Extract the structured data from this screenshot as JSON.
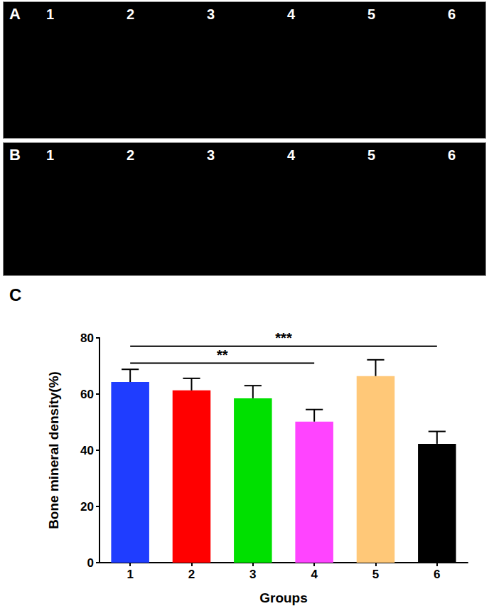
{
  "image_panels": [
    {
      "label": "A",
      "items": [
        "1",
        "2",
        "3",
        "4",
        "5",
        "6"
      ]
    },
    {
      "label": "B",
      "items": [
        "1",
        "2",
        "3",
        "4",
        "5",
        "6"
      ]
    }
  ],
  "chart_data": {
    "type": "bar",
    "title": "C",
    "x_label": "Groups",
    "y_label": "Bone mineral density(%)",
    "categories": [
      "1",
      "2",
      "3",
      "4",
      "5",
      "6"
    ],
    "values": [
      64.3,
      61.3,
      58.5,
      50.2,
      66.4,
      42.3
    ],
    "errors": [
      4.5,
      4.3,
      4.5,
      4.3,
      5.8,
      4.4
    ],
    "colors": [
      "#1f3dff",
      "#ff0000",
      "#00e000",
      "#ff44ff",
      "#ffc878",
      "#000000"
    ],
    "ylim": [
      0,
      80
    ],
    "yticks": [
      0,
      20,
      40,
      60,
      80
    ],
    "grid": false,
    "annotations": [
      {
        "text": "**",
        "from": "1",
        "to": "4",
        "y": 71
      },
      {
        "text": "***",
        "from": "1",
        "to": "6",
        "y": 77
      }
    ]
  }
}
